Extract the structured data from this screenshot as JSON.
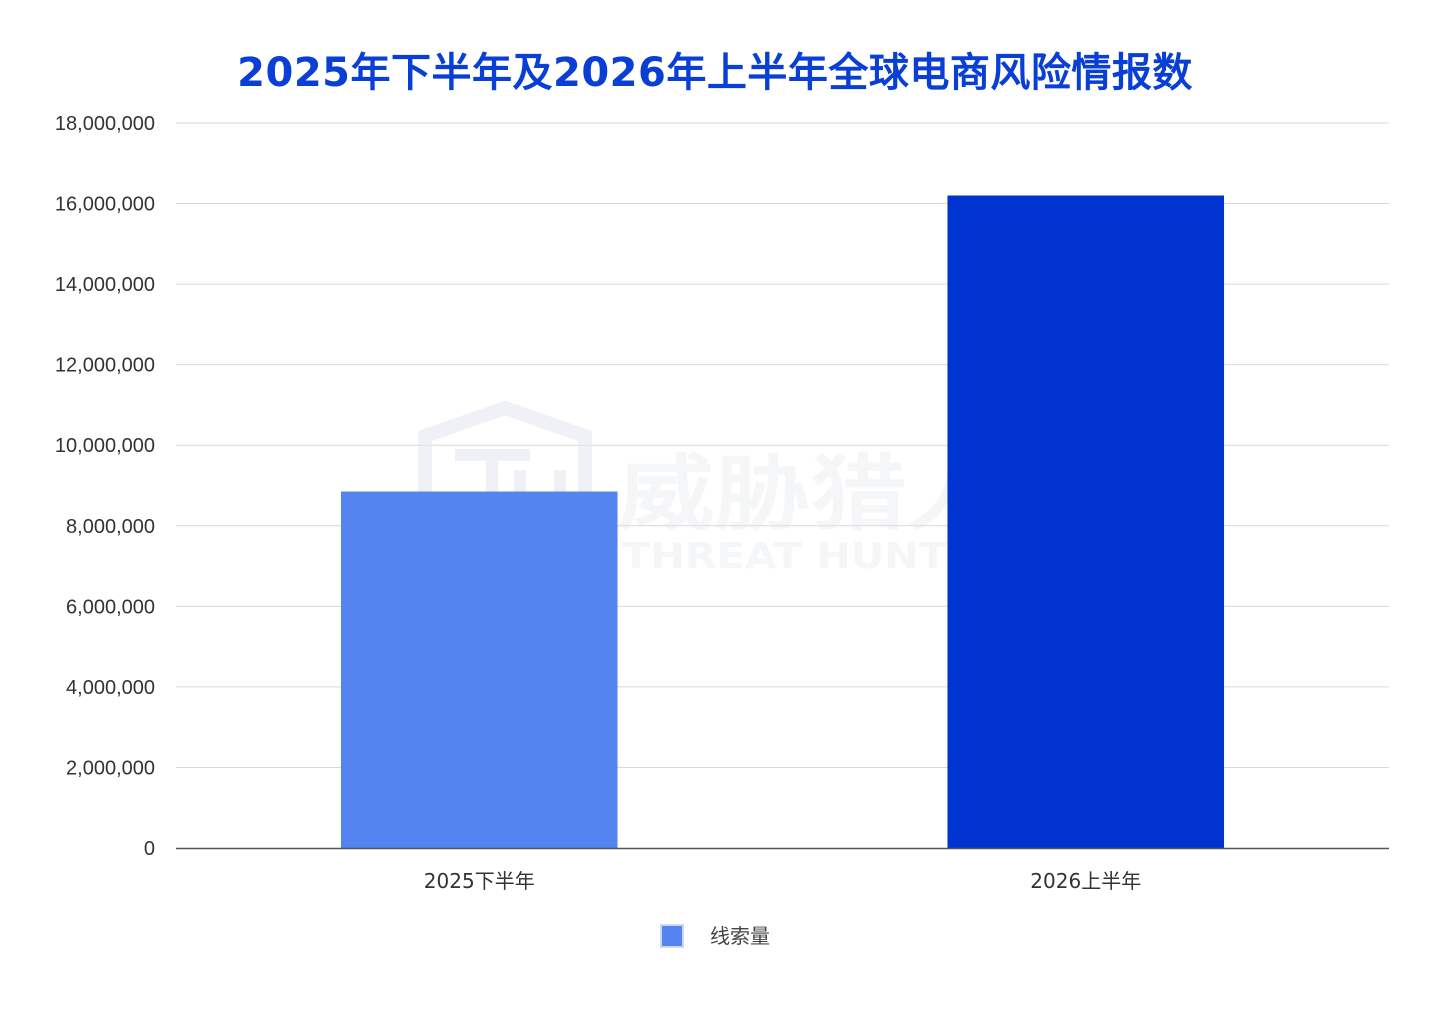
{
  "chart_data": {
    "type": "bar",
    "title": "2025年下半年及2026年上半年全球电商风险情报数",
    "categories": [
      "2025下半年",
      "2026上半年"
    ],
    "series": [
      {
        "name": "线索量",
        "values": [
          8850000,
          16200000
        ],
        "colors": [
          "#5384ef",
          "#0033d0"
        ]
      }
    ],
    "ylim": [
      0,
      18000000
    ],
    "yticks": [
      0,
      2000000,
      4000000,
      6000000,
      8000000,
      10000000,
      12000000,
      14000000,
      16000000,
      18000000
    ],
    "ytick_labels": [
      "0",
      "2,000,000",
      "4,000,000",
      "6,000,000",
      "8,000,000",
      "10,000,000",
      "12,000,000",
      "14,000,000",
      "16,000,000",
      "18,000,000"
    ],
    "xlabel": "",
    "ylabel": "",
    "grid": true,
    "legend": {
      "placement": "bottom-center",
      "swatch_color": "#5384ef"
    }
  },
  "watermark": {
    "text_cn": "威胁猎人",
    "text_en": "THREAT HUNTER",
    "icon": "threat-hunter-shield-logo"
  }
}
